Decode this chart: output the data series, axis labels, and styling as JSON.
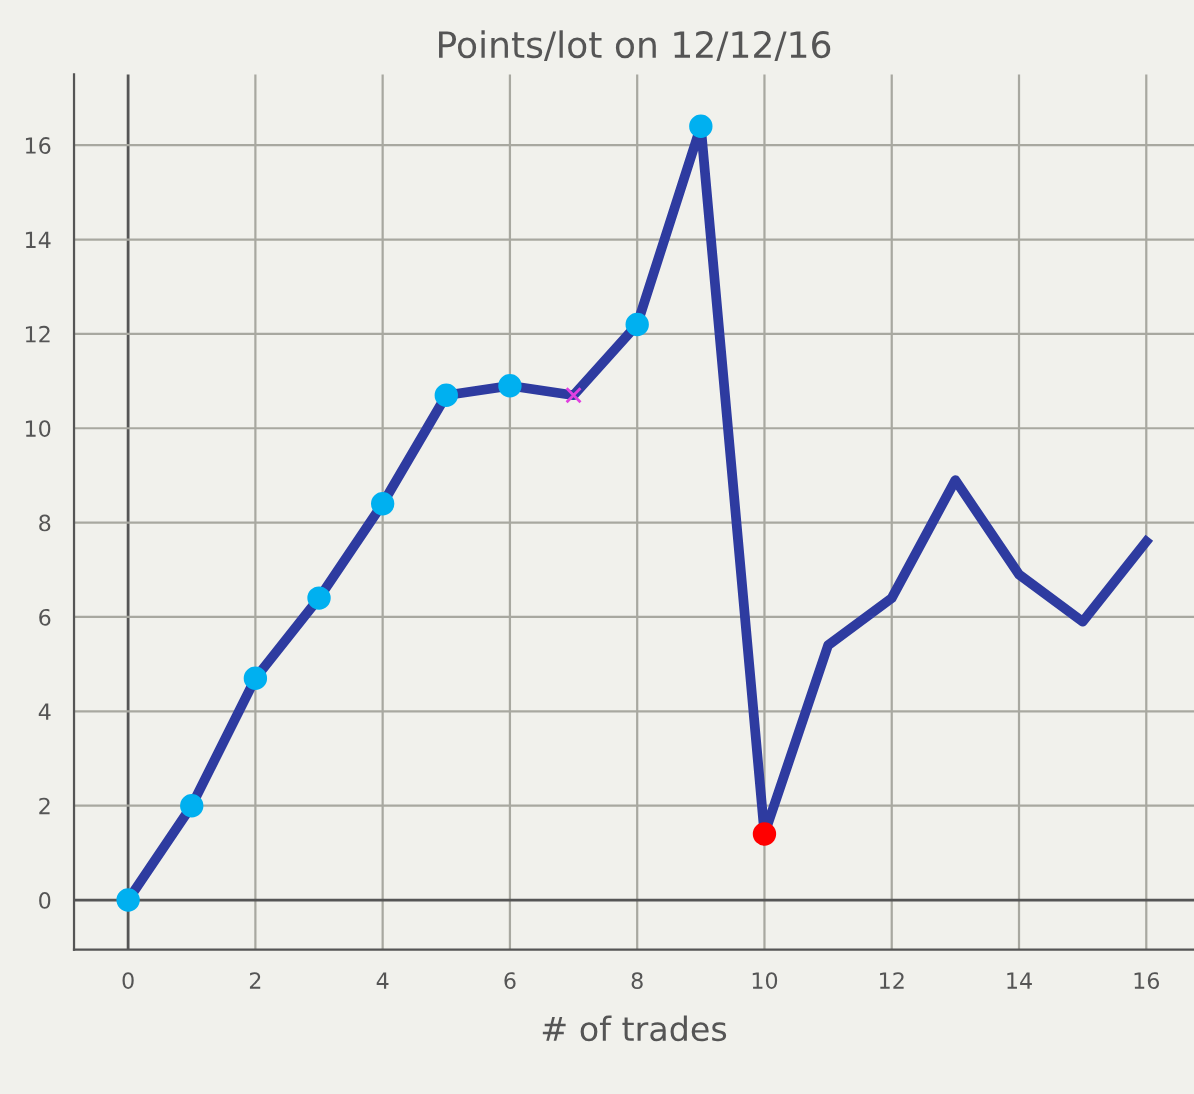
{
  "chart_data": {
    "type": "line",
    "title": "Points/lot on 12/12/16",
    "xlabel": "# of trades",
    "x": [
      0,
      1,
      2,
      3,
      4,
      5,
      6,
      7,
      8,
      9,
      10,
      11,
      12,
      13,
      14,
      15,
      16
    ],
    "series": [
      {
        "color": "#2e3ba0",
        "marker": "none",
        "values": [
          0,
          2.0,
          4.7,
          6.4,
          8.4,
          10.7,
          10.9,
          10.7,
          12.2,
          16.4,
          1.4,
          5.4,
          6.4,
          8.9,
          6.9,
          5.9,
          7.6
        ]
      },
      {
        "type": "scatter",
        "color": "#00b0f0",
        "marker": "circle",
        "x": [
          0,
          1,
          2,
          3,
          4,
          5,
          6,
          8,
          9
        ],
        "values": [
          0,
          2.0,
          4.7,
          6.4,
          8.4,
          10.7,
          10.9,
          12.2,
          16.4
        ]
      },
      {
        "type": "scatter",
        "color": "#e040e0",
        "marker": "cross",
        "x": [
          7
        ],
        "values": [
          10.7
        ]
      },
      {
        "type": "scatter",
        "color": "#ff0000",
        "marker": "circle",
        "x": [
          10
        ],
        "values": [
          1.4
        ]
      }
    ],
    "xlim": [
      -0.85,
      16.75
    ],
    "ylim": [
      -1.05,
      17.5
    ],
    "xticks": [
      0,
      2,
      4,
      6,
      8,
      10,
      12,
      14,
      16
    ],
    "yticks": [
      0,
      2,
      4,
      6,
      8,
      10,
      12,
      14,
      16
    ],
    "grid": true,
    "legend": false
  }
}
